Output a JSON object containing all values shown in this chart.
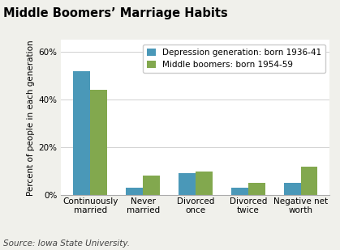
{
  "title": "Middle Boomers’ Marriage Habits",
  "categories": [
    "Continuously\nmarried",
    "Never\nmarried",
    "Divorced\nonce",
    "Divorced\ntwice",
    "Negative net\nworth"
  ],
  "depression_values": [
    52,
    3,
    9,
    3,
    5
  ],
  "boomer_values": [
    44,
    8,
    10,
    5,
    12
  ],
  "depression_color": "#4a98b8",
  "boomer_color": "#82a84e",
  "depression_label": "Depression generation: born 1936-41",
  "boomer_label": "Middle boomers: born 1954-59",
  "ylabel": "Percent of people in each generation",
  "source": "Source: Iowa State University.",
  "ylim": [
    0,
    65
  ],
  "yticks": [
    0,
    20,
    40,
    60
  ],
  "ytick_labels": [
    "0%",
    "20%",
    "40%",
    "60%"
  ],
  "plot_bg_color": "#ffffff",
  "fig_bg_color": "#f0f0eb",
  "title_fontsize": 10.5,
  "ylabel_fontsize": 7.5,
  "tick_fontsize": 7.5,
  "legend_fontsize": 7.5,
  "source_fontsize": 7.5,
  "bar_width": 0.32
}
